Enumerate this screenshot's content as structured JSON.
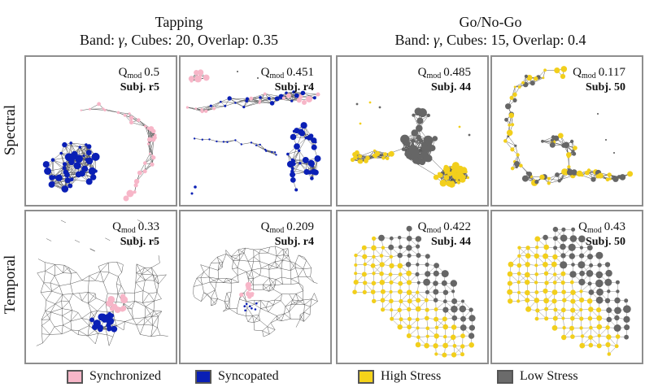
{
  "groups": {
    "tapping": {
      "title": "Tapping",
      "subtitle_prefix": "Band: ",
      "band_symbol": "γ",
      "subtitle_suffix": ", Cubes: 20, Overlap: 0.35"
    },
    "gonogo": {
      "title": "Go/No-Go",
      "subtitle_prefix": "Band: ",
      "band_symbol": "γ",
      "subtitle_suffix": ", Cubes: 15, Overlap: 0.4"
    }
  },
  "rows": {
    "spectral": "Spectral",
    "temporal": "Temporal"
  },
  "qmod_symbol": "Q",
  "qmod_subscript": "mod",
  "panels": [
    {
      "qmod": "0.5",
      "subject": "Subj. r5"
    },
    {
      "qmod": "0.451",
      "subject": "Subj. r4"
    },
    {
      "qmod": "0.485",
      "subject": "Subj. 44"
    },
    {
      "qmod": "0.117",
      "subject": "Subj. 50"
    },
    {
      "qmod": "0.33",
      "subject": "Subj. r5"
    },
    {
      "qmod": "0.209",
      "subject": "Subj. r4"
    },
    {
      "qmod": "0.422",
      "subject": "Subj. 44"
    },
    {
      "qmod": "0.43",
      "subject": "Subj. 50"
    }
  ],
  "legend": [
    {
      "label": "Synchronized",
      "color": "#f7b6c8"
    },
    {
      "label": "Syncopated",
      "color": "#0a1fb5"
    },
    {
      "label": "High Stress",
      "color": "#f5d31a"
    },
    {
      "label": "Low Stress",
      "color": "#6b6b6b"
    }
  ],
  "colors": {
    "synchronized": "#f7b6c8",
    "syncopated": "#0a1fb5",
    "high": "#f2cf1c",
    "low": "#666666",
    "edge": "#555555",
    "frame": "#8e8e8e"
  }
}
